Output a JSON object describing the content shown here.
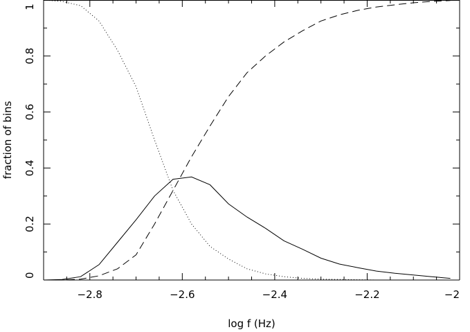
{
  "chart_data": {
    "type": "line",
    "xlabel": "log f (Hz)",
    "ylabel": "fraction of bins",
    "xlim": [
      -2.9,
      -2.0
    ],
    "ylim": [
      0,
      1
    ],
    "x_ticks": [
      -2.8,
      -2.6,
      -2.4,
      -2.2,
      -2.0
    ],
    "x_tick_labels": [
      "−2.8",
      "−2.6",
      "−2.4",
      "−2.2",
      "−2"
    ],
    "y_ticks": [
      0,
      0.2,
      0.4,
      0.6,
      0.8,
      1
    ],
    "y_tick_labels": [
      "0",
      "0.2",
      "0.4",
      "0.6",
      "0.8",
      "1"
    ],
    "grid": false,
    "series": [
      {
        "style": "solid",
        "x": [
          -2.9,
          -2.86,
          -2.82,
          -2.78,
          -2.74,
          -2.7,
          -2.66,
          -2.62,
          -2.58,
          -2.54,
          -2.5,
          -2.46,
          -2.42,
          -2.38,
          -2.34,
          -2.3,
          -2.26,
          -2.22,
          -2.18,
          -2.14,
          -2.1,
          -2.06,
          -2.02
        ],
        "y": [
          0.0,
          0.002,
          0.012,
          0.055,
          0.135,
          0.215,
          0.3,
          0.36,
          0.368,
          0.34,
          0.272,
          0.225,
          0.185,
          0.14,
          0.11,
          0.078,
          0.057,
          0.044,
          0.032,
          0.024,
          0.018,
          0.012,
          0.006
        ]
      },
      {
        "style": "dashed",
        "x": [
          -2.9,
          -2.86,
          -2.82,
          -2.78,
          -2.74,
          -2.7,
          -2.66,
          -2.62,
          -2.58,
          -2.54,
          -2.5,
          -2.46,
          -2.42,
          -2.38,
          -2.34,
          -2.3,
          -2.26,
          -2.22,
          -2.18,
          -2.14,
          -2.1,
          -2.06,
          -2.02
        ],
        "y": [
          0.0,
          0.0,
          0.003,
          0.015,
          0.04,
          0.09,
          0.2,
          0.32,
          0.44,
          0.55,
          0.655,
          0.74,
          0.8,
          0.85,
          0.89,
          0.925,
          0.947,
          0.963,
          0.975,
          0.983,
          0.99,
          0.995,
          0.998
        ]
      },
      {
        "style": "dotted",
        "x": [
          -2.9,
          -2.86,
          -2.82,
          -2.78,
          -2.74,
          -2.7,
          -2.66,
          -2.62,
          -2.58,
          -2.54,
          -2.5,
          -2.46,
          -2.42,
          -2.38,
          -2.34,
          -2.3,
          -2.26,
          -2.22,
          -2.18,
          -2.14,
          -2.1,
          -2.06,
          -2.02
        ],
        "y": [
          1.0,
          0.995,
          0.98,
          0.925,
          0.82,
          0.69,
          0.5,
          0.32,
          0.2,
          0.12,
          0.075,
          0.04,
          0.022,
          0.012,
          0.006,
          0.003,
          0.002,
          0.001,
          0.0,
          0.0,
          0.0,
          0.0,
          0.0
        ]
      }
    ]
  }
}
